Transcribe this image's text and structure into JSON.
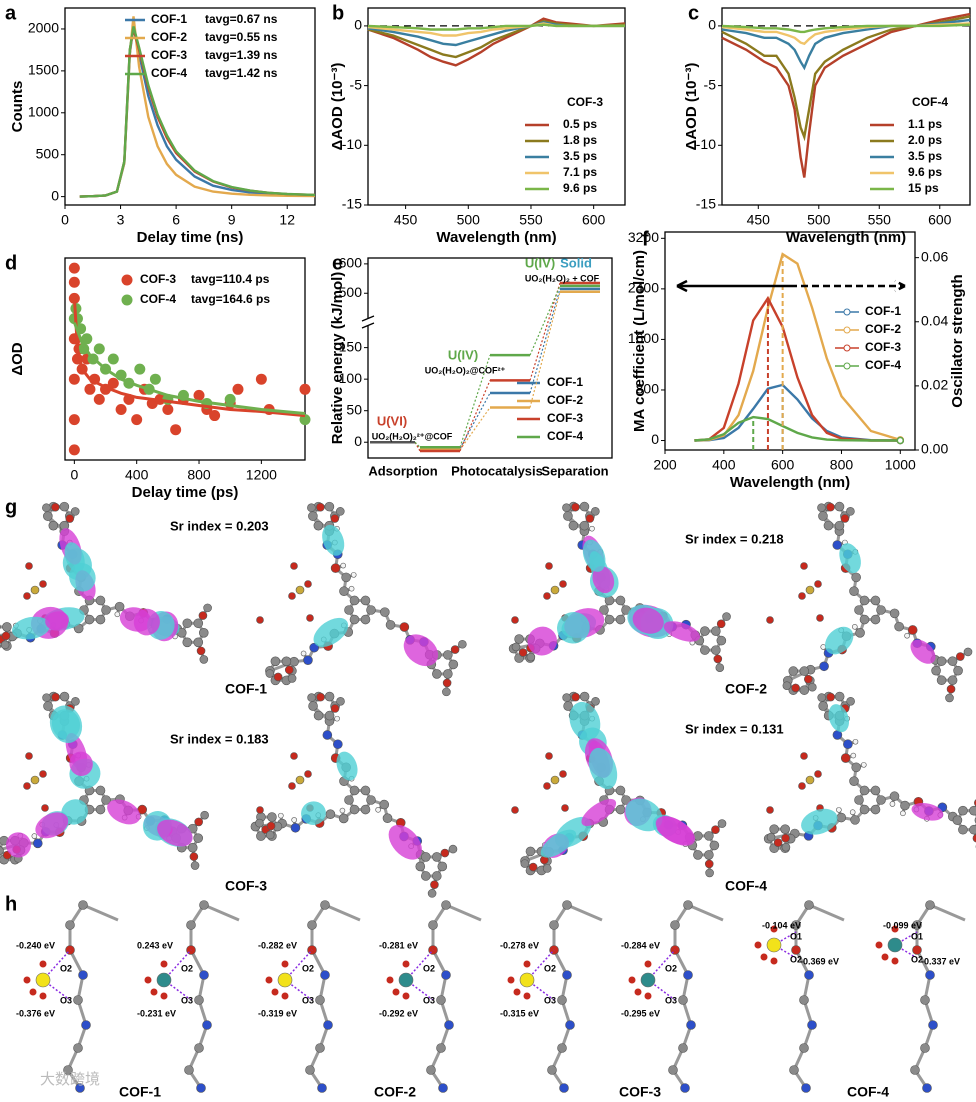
{
  "chart_data": [
    {
      "panel": "a",
      "type": "line",
      "x_label": "Delay time (ns)",
      "y_label": "Counts",
      "legend": "upper right",
      "x": [
        0.8,
        1.5,
        2.2,
        2.8,
        3.2,
        3.5,
        3.7,
        4,
        4.5,
        5,
        5.5,
        6,
        7,
        8,
        9,
        10,
        11,
        12,
        13.5
      ],
      "xlim": [
        0,
        13.5
      ],
      "xticks": [
        0,
        3,
        6,
        9,
        12
      ],
      "ylim": [
        -100,
        2250
      ],
      "yticks": [
        0,
        500,
        1000,
        1500,
        2000
      ],
      "series": [
        {
          "name": "COF-1",
          "label": "tavg=0.67 ns",
          "color": "#3b78a8",
          "values": [
            0,
            5,
            15,
            60,
            400,
            1700,
            2050,
            1700,
            1200,
            850,
            600,
            440,
            240,
            130,
            80,
            50,
            35,
            25,
            15
          ]
        },
        {
          "name": "COF-2",
          "label": "tavg=0.55 ns",
          "color": "#e3a94d",
          "values": [
            0,
            5,
            15,
            60,
            400,
            1700,
            2150,
            1550,
            950,
            600,
            390,
            260,
            120,
            60,
            35,
            22,
            15,
            10,
            7
          ]
        },
        {
          "name": "COF-3",
          "label": "tavg=1.39 ns",
          "color": "#c8412b",
          "values": [
            0,
            5,
            15,
            60,
            420,
            1750,
            2000,
            1750,
            1300,
            950,
            700,
            520,
            300,
            180,
            110,
            70,
            45,
            30,
            20
          ]
        },
        {
          "name": "COF-4",
          "label": "tavg=1.42 ns",
          "color": "#5fa84a",
          "values": [
            0,
            5,
            15,
            60,
            420,
            1750,
            2030,
            1780,
            1330,
            980,
            730,
            540,
            310,
            185,
            115,
            72,
            46,
            31,
            20
          ]
        }
      ]
    },
    {
      "panel": "b",
      "type": "line",
      "x_label": "Wavelength (nm)",
      "y_label": "ΔAOD (10⁻³)",
      "legend": "lower right",
      "legend_title": "COF-3",
      "reference_line": 0,
      "x": [
        420,
        440,
        460,
        470,
        480,
        490,
        500,
        510,
        520,
        530,
        540,
        550,
        560,
        570,
        580,
        600,
        625
      ],
      "xlim": [
        420,
        625
      ],
      "xticks": [
        450,
        500,
        550,
        600
      ],
      "ylim": [
        -15,
        1.5
      ],
      "yticks": [
        -15,
        -10,
        -5,
        0
      ],
      "series": [
        {
          "name": "0.5 ps",
          "color": "#b5402a",
          "values": [
            -0.3,
            -1,
            -2,
            -2.6,
            -3,
            -3.3,
            -2.8,
            -2.2,
            -1.5,
            -1,
            -0.5,
            0,
            0.6,
            0.3,
            0.2,
            0,
            0.2
          ]
        },
        {
          "name": "1.8 ps",
          "color": "#8b7a1e",
          "values": [
            -0.3,
            -0.8,
            -1.6,
            -2,
            -2.4,
            -2.6,
            -2.2,
            -1.8,
            -1.2,
            -0.8,
            -0.4,
            0,
            0.4,
            0.2,
            0.1,
            0,
            0.1
          ]
        },
        {
          "name": "3.5 ps",
          "color": "#3a7fa0",
          "values": [
            -0.2,
            -0.5,
            -0.9,
            -1.2,
            -1.5,
            -1.6,
            -1.3,
            -1,
            -0.7,
            -0.4,
            -0.2,
            0,
            0.3,
            0.1,
            0,
            0,
            0
          ]
        },
        {
          "name": "7.1 ps",
          "color": "#f0c46a",
          "values": [
            -0.1,
            -0.3,
            -0.5,
            -0.6,
            -0.8,
            -0.8,
            -0.6,
            -0.5,
            -0.3,
            -0.2,
            -0.1,
            0,
            0.2,
            0,
            0,
            0,
            0
          ]
        },
        {
          "name": "9.6 ps",
          "color": "#7ab648",
          "values": [
            0,
            -0.1,
            -0.2,
            -0.3,
            -0.3,
            -0.3,
            -0.2,
            -0.2,
            -0.1,
            0,
            0,
            0,
            0.1,
            0,
            0,
            0,
            0
          ]
        }
      ]
    },
    {
      "panel": "c",
      "type": "line",
      "x_label": "Wavelength (nm)",
      "y_label": "ΔAOD (10⁻³)",
      "legend": "lower right",
      "legend_title": "COF-4",
      "reference_line": 0,
      "x": [
        420,
        440,
        455,
        465,
        475,
        480,
        485,
        488,
        492,
        497,
        505,
        520,
        540,
        560,
        580,
        600,
        625
      ],
      "xlim": [
        420,
        625
      ],
      "xticks": [
        450,
        500,
        550,
        600
      ],
      "ylim": [
        -15,
        1.5
      ],
      "yticks": [
        -15,
        -10,
        -5,
        0
      ],
      "series": [
        {
          "name": "1.1 ps",
          "color": "#b5402a",
          "values": [
            -1,
            -2,
            -3,
            -3.5,
            -5,
            -7,
            -11,
            -12.7,
            -9,
            -5,
            -3.5,
            -2.5,
            -1.5,
            -0.5,
            0,
            0.5,
            1
          ]
        },
        {
          "name": "2.0 ps",
          "color": "#8b7a1e",
          "values": [
            -0.5,
            -1.5,
            -2.5,
            -2.5,
            -4,
            -6,
            -8.5,
            -9.3,
            -7,
            -4,
            -3,
            -2,
            -1,
            -0.3,
            0,
            0.3,
            0.8
          ]
        },
        {
          "name": "3.5 ps",
          "color": "#3a7fa0",
          "values": [
            -0.3,
            -0.6,
            -1,
            -1,
            -1.5,
            -2,
            -3,
            -3.5,
            -2.5,
            -1.5,
            -1,
            -0.6,
            -0.3,
            0,
            0,
            0.2,
            0.5
          ]
        },
        {
          "name": "9.6 ps",
          "color": "#f0c46a",
          "values": [
            -0.1,
            -0.3,
            -0.5,
            -0.5,
            -0.8,
            -1,
            -1.4,
            -1.5,
            -1.1,
            -0.7,
            -0.5,
            -0.3,
            -0.1,
            0,
            0,
            0.1,
            0.2
          ]
        },
        {
          "name": "15 ps",
          "color": "#7ab648",
          "values": [
            0,
            -0.1,
            -0.2,
            -0.2,
            -0.3,
            -0.4,
            -0.5,
            -0.5,
            -0.4,
            -0.3,
            -0.2,
            -0.1,
            0,
            0,
            0,
            0,
            0.1
          ]
        }
      ]
    },
    {
      "panel": "d",
      "type": "scatter",
      "x_label": "Delay time (ps)",
      "y_label": "ΔOD",
      "legend": "upper right",
      "xlim": [
        -60,
        1480
      ],
      "xticks": [
        0,
        400,
        800,
        1200
      ],
      "ylim": [
        0,
        1
      ],
      "fit_x": [
        0,
        20,
        50,
        100,
        200,
        300,
        400,
        600,
        800,
        1000,
        1200,
        1480
      ],
      "series": [
        {
          "name": "COF-3",
          "label": "tavg=110.4 ps",
          "color": "#d9432b",
          "x": [
            0,
            0,
            0,
            0,
            0,
            0,
            0,
            10,
            20,
            30,
            50,
            80,
            100,
            130,
            160,
            200,
            250,
            300,
            350,
            400,
            450,
            500,
            550,
            600,
            650,
            700,
            800,
            850,
            900,
            1000,
            1050,
            1200,
            1250,
            1480
          ],
          "values": [
            0.05,
            0.2,
            0.4,
            0.6,
            0.8,
            0.95,
            0.88,
            0.6,
            0.5,
            0.55,
            0.45,
            0.5,
            0.35,
            0.4,
            0.3,
            0.35,
            0.38,
            0.25,
            0.3,
            0.2,
            0.35,
            0.28,
            0.3,
            0.25,
            0.15,
            0.3,
            0.32,
            0.25,
            0.22,
            0.28,
            0.35,
            0.4,
            0.25,
            0.35
          ],
          "fit_values": [
            0.8,
            0.55,
            0.45,
            0.4,
            0.36,
            0.33,
            0.31,
            0.29,
            0.27,
            0.25,
            0.24,
            0.22
          ]
        },
        {
          "name": "COF-4",
          "label": "tavg=164.6 ps",
          "color": "#6fb04f",
          "x": [
            0,
            10,
            20,
            40,
            60,
            80,
            120,
            160,
            200,
            250,
            300,
            350,
            420,
            480,
            520,
            600,
            700,
            850,
            1000,
            1480
          ],
          "values": [
            0.7,
            0.75,
            0.7,
            0.65,
            0.55,
            0.6,
            0.5,
            0.55,
            0.45,
            0.5,
            0.42,
            0.38,
            0.45,
            0.35,
            0.4,
            0.3,
            0.32,
            0.28,
            0.3,
            0.2
          ],
          "fit_values": [
            0.68,
            0.64,
            0.58,
            0.52,
            0.45,
            0.4,
            0.37,
            0.32,
            0.29,
            0.27,
            0.25,
            0.23
          ]
        }
      ]
    },
    {
      "panel": "e",
      "type": "energy_diagram",
      "y_label": "Relative energy (kJ/mol)",
      "legend": "lower right",
      "categories": [
        "Adsorption",
        "Photocatalysis",
        "Separation"
      ],
      "initial_level": 0,
      "ylim": [
        -25,
        620
      ],
      "ybreak": [
        170,
        460
      ],
      "yticks": [
        0,
        50,
        100,
        150,
        500,
        600
      ],
      "annotations": [
        "U(VI)",
        "UO₂(H₂O)₂²⁺@COF",
        "U(IV)",
        "UO₂(H₂O)₂@COF²⁺",
        "U(IV)",
        "Solid",
        "UO₂(H₂O)₂ + COF"
      ],
      "series": [
        {
          "name": "COF-1",
          "color": "#3b78a8",
          "values": [
            -10,
            78,
            515
          ]
        },
        {
          "name": "COF-2",
          "color": "#e3a94d",
          "values": [
            -12,
            55,
            505
          ]
        },
        {
          "name": "COF-3",
          "color": "#c8412b",
          "values": [
            -14,
            98,
            535
          ]
        },
        {
          "name": "COF-4",
          "color": "#5fa84a",
          "values": [
            -8,
            138,
            525
          ]
        }
      ]
    },
    {
      "panel": "f",
      "type": "line",
      "x_label": "Wavelength (nm)",
      "y_label": "MA coefficient (L/mol/cm)",
      "y2_label": "Oscillator strength",
      "legend": "right",
      "x": [
        300,
        350,
        400,
        450,
        500,
        550,
        600,
        650,
        700,
        750,
        800,
        900,
        1000
      ],
      "xlim": [
        200,
        1050
      ],
      "xticks": [
        200,
        400,
        600,
        800,
        1000
      ],
      "ylim": [
        -150,
        3300
      ],
      "yticks": [
        0,
        800,
        1600,
        2400,
        3200
      ],
      "y2lim": [
        0,
        0.068
      ],
      "y2ticks": [
        {
          "value": 0,
          "label": "0.00"
        },
        0.02,
        0.04,
        0.06
      ],
      "series": [
        {
          "name": "COF-1",
          "color": "#3b78a8",
          "values": [
            0,
            5,
            40,
            200,
            500,
            820,
            880,
            650,
            350,
            150,
            50,
            5,
            0
          ]
        },
        {
          "name": "COF-2",
          "color": "#e3a94d",
          "values": [
            0,
            10,
            80,
            400,
            1100,
            2100,
            2950,
            2800,
            2100,
            1300,
            700,
            150,
            10
          ]
        },
        {
          "name": "COF-3",
          "color": "#c8412b",
          "values": [
            0,
            20,
            200,
            900,
            1900,
            2250,
            1800,
            1000,
            400,
            120,
            30,
            0,
            0
          ]
        },
        {
          "name": "COF-4",
          "color": "#5fa84a",
          "values": [
            0,
            20,
            100,
            280,
            370,
            340,
            230,
            120,
            50,
            15,
            5,
            0,
            0
          ]
        }
      ]
    }
  ],
  "panel_g": {
    "panel": "g",
    "sr_labels": [
      "Sr index = 0.203",
      "Sr index = 0.218",
      "Sr index = 0.183",
      "Sr index = 0.131"
    ],
    "cof_labels": [
      "COF-1",
      "COF-2",
      "COF-3",
      "COF-4"
    ]
  },
  "panel_h": {
    "panel": "h",
    "structures": [
      [
        "-0.240 eV",
        "O2",
        "O3",
        "-0.376 eV"
      ],
      [
        "0.243 eV",
        "O2",
        "O3",
        "-0.231 eV"
      ],
      [
        "-0.282 eV",
        "O2",
        "O3",
        "-0.319 eV"
      ],
      [
        "-0.281 eV",
        "O2",
        "O3",
        "-0.292 eV"
      ],
      [
        "-0.278 eV",
        "O2",
        "O3",
        "-0.315 eV"
      ],
      [
        "-0.284 eV",
        "O2",
        "O3",
        "-0.295 eV"
      ],
      [
        "-0.104 eV",
        "O1",
        "O2",
        "-0.369 eV"
      ],
      [
        "-0.099 eV",
        "O1",
        "O2",
        "-0.337 eV"
      ]
    ],
    "cof_labels": [
      "COF-1",
      "COF-2",
      "COF-3",
      "COF-4"
    ]
  },
  "watermark": "大数跨境"
}
